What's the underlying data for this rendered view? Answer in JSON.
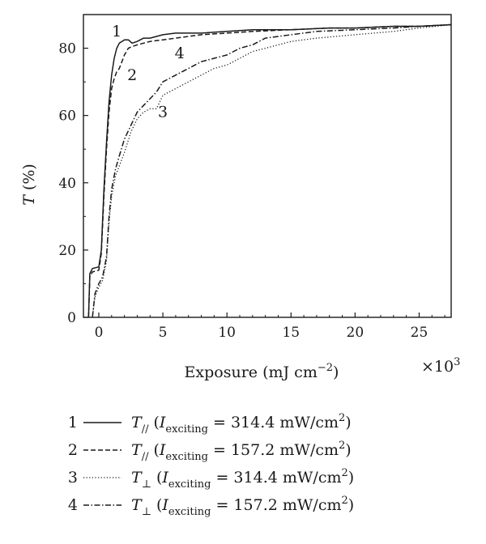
{
  "chart_data": {
    "type": "line",
    "xlabel": "Exposure (mJ cm",
    "xlabel_sup": "−2",
    "xlabel_close": ")",
    "x_multiplier": "×10",
    "x_multiplier_exp": "3",
    "ylabel_main": "T",
    "ylabel_unit": " (%)",
    "xlim": [
      -1.2,
      27.5
    ],
    "ylim": [
      0,
      90
    ],
    "x_ticks": [
      "0",
      "5",
      "10",
      "15",
      "20",
      "25"
    ],
    "y_ticks": [
      "0",
      "20",
      "40",
      "60",
      "80"
    ],
    "series": [
      {
        "name": "1",
        "style": "solid",
        "x": [
          -0.8,
          -0.7,
          -0.5,
          0.0,
          0.2,
          0.4,
          0.6,
          0.8,
          1.0,
          1.2,
          1.4,
          1.6,
          1.8,
          2.0,
          2.3,
          2.6,
          3.0,
          3.5,
          4.0,
          5.0,
          6.0,
          8.0,
          10.0,
          12.0,
          15.0,
          18.0,
          20.0,
          23.0,
          25.0,
          27.5
        ],
        "y": [
          0,
          13,
          14.5,
          15,
          20,
          38,
          52,
          64,
          72,
          77,
          80,
          81.5,
          82,
          82.5,
          82.5,
          81.5,
          82,
          83,
          83,
          84,
          84.5,
          84.5,
          85,
          85.5,
          85.5,
          86,
          86,
          86.5,
          86.5,
          87
        ]
      },
      {
        "name": "2",
        "style": "dashed",
        "x": [
          -0.8,
          -0.7,
          -0.5,
          0.0,
          0.2,
          0.4,
          0.6,
          0.8,
          1.0,
          1.2,
          1.4,
          1.6,
          1.8,
          2.0,
          2.3,
          2.6,
          3.0,
          3.5,
          4.0,
          5.0,
          6.0,
          8.0,
          10.0,
          12.0,
          15.0,
          18.0,
          20.0,
          23.0,
          25.0,
          27.5
        ],
        "y": [
          0,
          12,
          13.5,
          14,
          19,
          36,
          50,
          61,
          68,
          71,
          73,
          74,
          76,
          78,
          80,
          80.5,
          81,
          81.5,
          82,
          82.5,
          83,
          84,
          84.5,
          85,
          85.5,
          86,
          86,
          86.5,
          86.5,
          87
        ]
      },
      {
        "name": "3",
        "style": "dotted",
        "x": [
          -0.5,
          -0.3,
          0.0,
          0.3,
          0.6,
          0.8,
          1.0,
          1.3,
          1.6,
          2.0,
          2.5,
          3.0,
          3.5,
          4.0,
          4.5,
          5.0,
          6.0,
          7.0,
          8.0,
          9.0,
          10.0,
          11.0,
          12.0,
          13.0,
          15.0,
          17.0,
          20.0,
          23.0,
          25.0,
          27.5
        ],
        "y": [
          0,
          6,
          9,
          11,
          17,
          28,
          36,
          42,
          45,
          49,
          55,
          59,
          61,
          62,
          62,
          66,
          68,
          70,
          72,
          74,
          75,
          77,
          79,
          80,
          82,
          83,
          84,
          85,
          86,
          87
        ]
      },
      {
        "name": "4",
        "style": "dashdot",
        "x": [
          -0.5,
          -0.3,
          0.0,
          0.3,
          0.6,
          0.8,
          1.0,
          1.3,
          1.6,
          2.0,
          2.5,
          3.0,
          3.5,
          4.0,
          4.5,
          5.0,
          6.0,
          7.0,
          8.0,
          9.0,
          10.0,
          11.0,
          12.0,
          13.0,
          15.0,
          17.0,
          20.0,
          23.0,
          25.0,
          27.5
        ],
        "y": [
          0,
          7,
          10,
          12,
          18,
          30,
          38,
          44,
          48,
          53,
          57,
          61,
          63,
          65,
          67,
          70,
          72,
          74,
          76,
          77,
          78,
          80,
          81,
          83,
          84,
          85,
          85.5,
          86,
          86.5,
          87
        ]
      }
    ],
    "curve_labels": [
      {
        "text": "1",
        "x": 1.4,
        "y": 83.5
      },
      {
        "text": "2",
        "x": 2.6,
        "y": 70.5
      },
      {
        "text": "3",
        "x": 5.0,
        "y": 59.5
      },
      {
        "text": "4",
        "x": 6.3,
        "y": 77.0
      }
    ],
    "legend": [
      {
        "num": "1",
        "style": "solid",
        "symbol": "T",
        "sub_symbol": "//",
        "paren_open": " (",
        "i_symbol": "I",
        "i_sub": "exciting",
        "value": " = 314.4 mW/cm",
        "sup": "2",
        "close": ")"
      },
      {
        "num": "2",
        "style": "dashed",
        "symbol": "T",
        "sub_symbol": "//",
        "paren_open": " (",
        "i_symbol": "I",
        "i_sub": "exciting",
        "value": " = 157.2 mW/cm",
        "sup": "2",
        "close": ")"
      },
      {
        "num": "3",
        "style": "dotted",
        "symbol": "T",
        "sub_symbol": "⊥",
        "paren_open": " (",
        "i_symbol": "I",
        "i_sub": "exciting",
        "value": " = 314.4 mW/cm",
        "sup": "2",
        "close": ")"
      },
      {
        "num": "4",
        "style": "dashdot",
        "symbol": "T",
        "sub_symbol": "⊥",
        "paren_open": " (",
        "i_symbol": "I",
        "i_sub": "exciting",
        "value": " = 157.2 mW/cm",
        "sup": "2",
        "close": ")"
      }
    ],
    "legend_placement": "bottom",
    "grid": false,
    "colors": {
      "ink": "#1a1a1a",
      "background": "#ffffff"
    }
  }
}
